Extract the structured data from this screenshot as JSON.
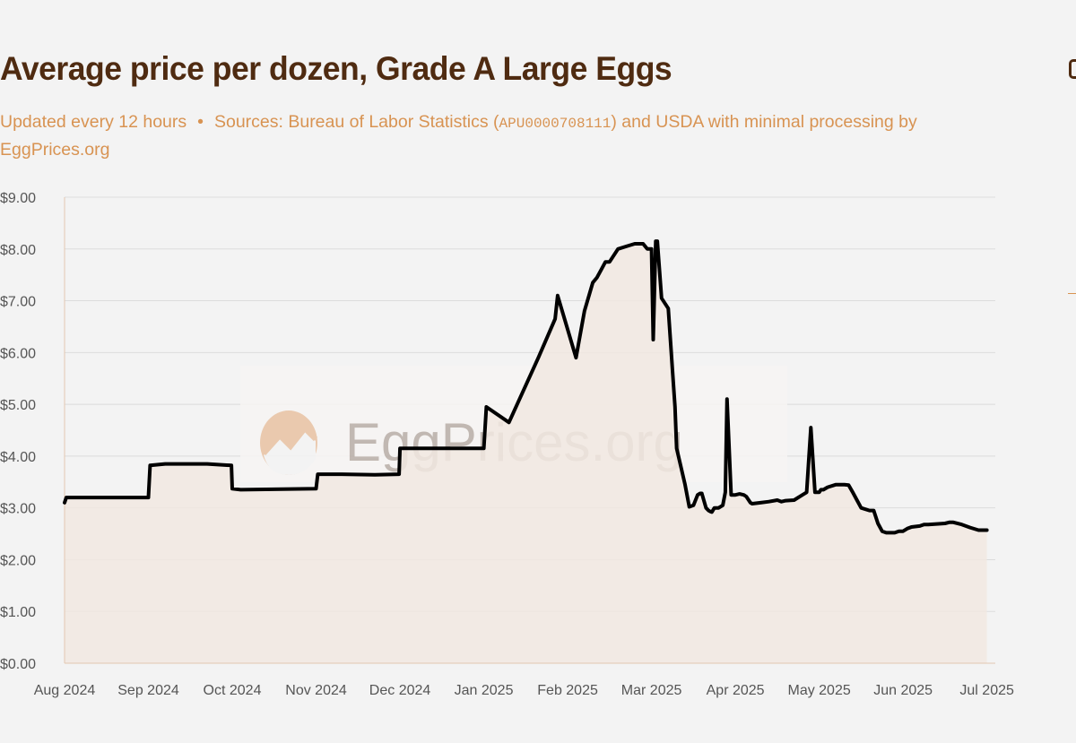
{
  "header": {
    "title": "Average price per dozen, Grade A Large Eggs",
    "subtitle_update": "Updated every 12 hours",
    "subtitle_separator": "•",
    "subtitle_sources_prefix": "Sources: Bureau of Labor Statistics (",
    "subtitle_series_code": "APU0000708111",
    "subtitle_sources_suffix": ") and USDA with minimal processing by EggPrices.org"
  },
  "watermark": {
    "text": "EggPrices.org"
  },
  "colors": {
    "title": "#4f2b11",
    "accent": "#d89352",
    "line": "#000000",
    "fill": "#f1e8e1",
    "grid": "#dcdcdc",
    "background": "#f3f3f3"
  },
  "chart_data": {
    "type": "area",
    "title": "Average price per dozen, Grade A Large Eggs",
    "xlabel": "",
    "ylabel": "",
    "y_tick_labels": [
      "$0.00",
      "$1.00",
      "$2.00",
      "$3.00",
      "$4.00",
      "$5.00",
      "$6.00",
      "$7.00",
      "$8.00",
      "$9.00"
    ],
    "x_tick_labels": [
      "Aug 2024",
      "Sep 2024",
      "Oct 2024",
      "Nov 2024",
      "Dec 2024",
      "Jan 2025",
      "Feb 2025",
      "Mar 2025",
      "Apr 2025",
      "May 2025",
      "Jun 2025",
      "Jul 2025"
    ],
    "ylim": [
      0,
      9
    ],
    "xlim": [
      0,
      11.1
    ],
    "grid": true,
    "series": [
      {
        "name": "Average price per dozen",
        "unit": "USD",
        "x": [
          0.0,
          0.02,
          0.4,
          1.0,
          1.0,
          1.02,
          1.2,
          1.7,
          1.99,
          2.0,
          2.1,
          3.0,
          3.02,
          3.3,
          3.7,
          3.99,
          4.0,
          4.15,
          4.7,
          5.0,
          5.03,
          5.3,
          5.65,
          5.85,
          5.88,
          6.1,
          6.2,
          6.3,
          6.35,
          6.4,
          6.45,
          6.5,
          6.6,
          6.7,
          6.8,
          6.9,
          6.95,
          7.0,
          7.02,
          7.05,
          7.07,
          7.12,
          7.2,
          7.25,
          7.28,
          7.3,
          7.4,
          7.45,
          7.5,
          7.55,
          7.58,
          7.6,
          7.65,
          7.68,
          7.7,
          7.72,
          7.75,
          7.8,
          7.85,
          7.88,
          7.9,
          7.95,
          8.0,
          8.05,
          8.1,
          8.13,
          8.18,
          8.2,
          8.3,
          8.4,
          8.5,
          8.55,
          8.6,
          8.7,
          8.8,
          8.85,
          8.9,
          8.95,
          9.0,
          9.02,
          9.05,
          9.1,
          9.2,
          9.3,
          9.35,
          9.4,
          9.45,
          9.5,
          9.6,
          9.65,
          9.7,
          9.75,
          9.8,
          9.85,
          9.9,
          9.95,
          10.0,
          10.05,
          10.1,
          10.2,
          10.25,
          10.3,
          10.5,
          10.55,
          10.6,
          10.7,
          10.8,
          10.9,
          11.0
        ],
        "values": [
          3.1,
          3.2,
          3.2,
          3.2,
          3.2,
          3.82,
          3.85,
          3.85,
          3.82,
          3.37,
          3.35,
          3.37,
          3.65,
          3.65,
          3.64,
          3.65,
          4.15,
          4.15,
          4.15,
          4.15,
          4.95,
          4.65,
          5.9,
          6.65,
          7.1,
          5.9,
          6.8,
          7.35,
          7.45,
          7.6,
          7.75,
          7.75,
          8.0,
          8.05,
          8.1,
          8.1,
          8.0,
          8.0,
          6.25,
          8.15,
          8.15,
          7.05,
          6.85,
          5.65,
          4.95,
          4.15,
          3.45,
          3.02,
          3.05,
          3.25,
          3.28,
          3.28,
          3.0,
          2.95,
          2.93,
          2.92,
          3.0,
          3.0,
          3.05,
          3.3,
          5.1,
          3.25,
          3.25,
          3.27,
          3.25,
          3.22,
          3.1,
          3.08,
          3.1,
          3.12,
          3.15,
          3.12,
          3.14,
          3.15,
          3.25,
          3.3,
          4.55,
          3.3,
          3.3,
          3.35,
          3.35,
          3.4,
          3.45,
          3.45,
          3.44,
          3.3,
          3.15,
          3.0,
          2.95,
          2.95,
          2.7,
          2.55,
          2.52,
          2.52,
          2.52,
          2.55,
          2.55,
          2.6,
          2.63,
          2.65,
          2.68,
          2.68,
          2.7,
          2.72,
          2.72,
          2.68,
          2.62,
          2.57,
          2.57
        ]
      }
    ]
  }
}
